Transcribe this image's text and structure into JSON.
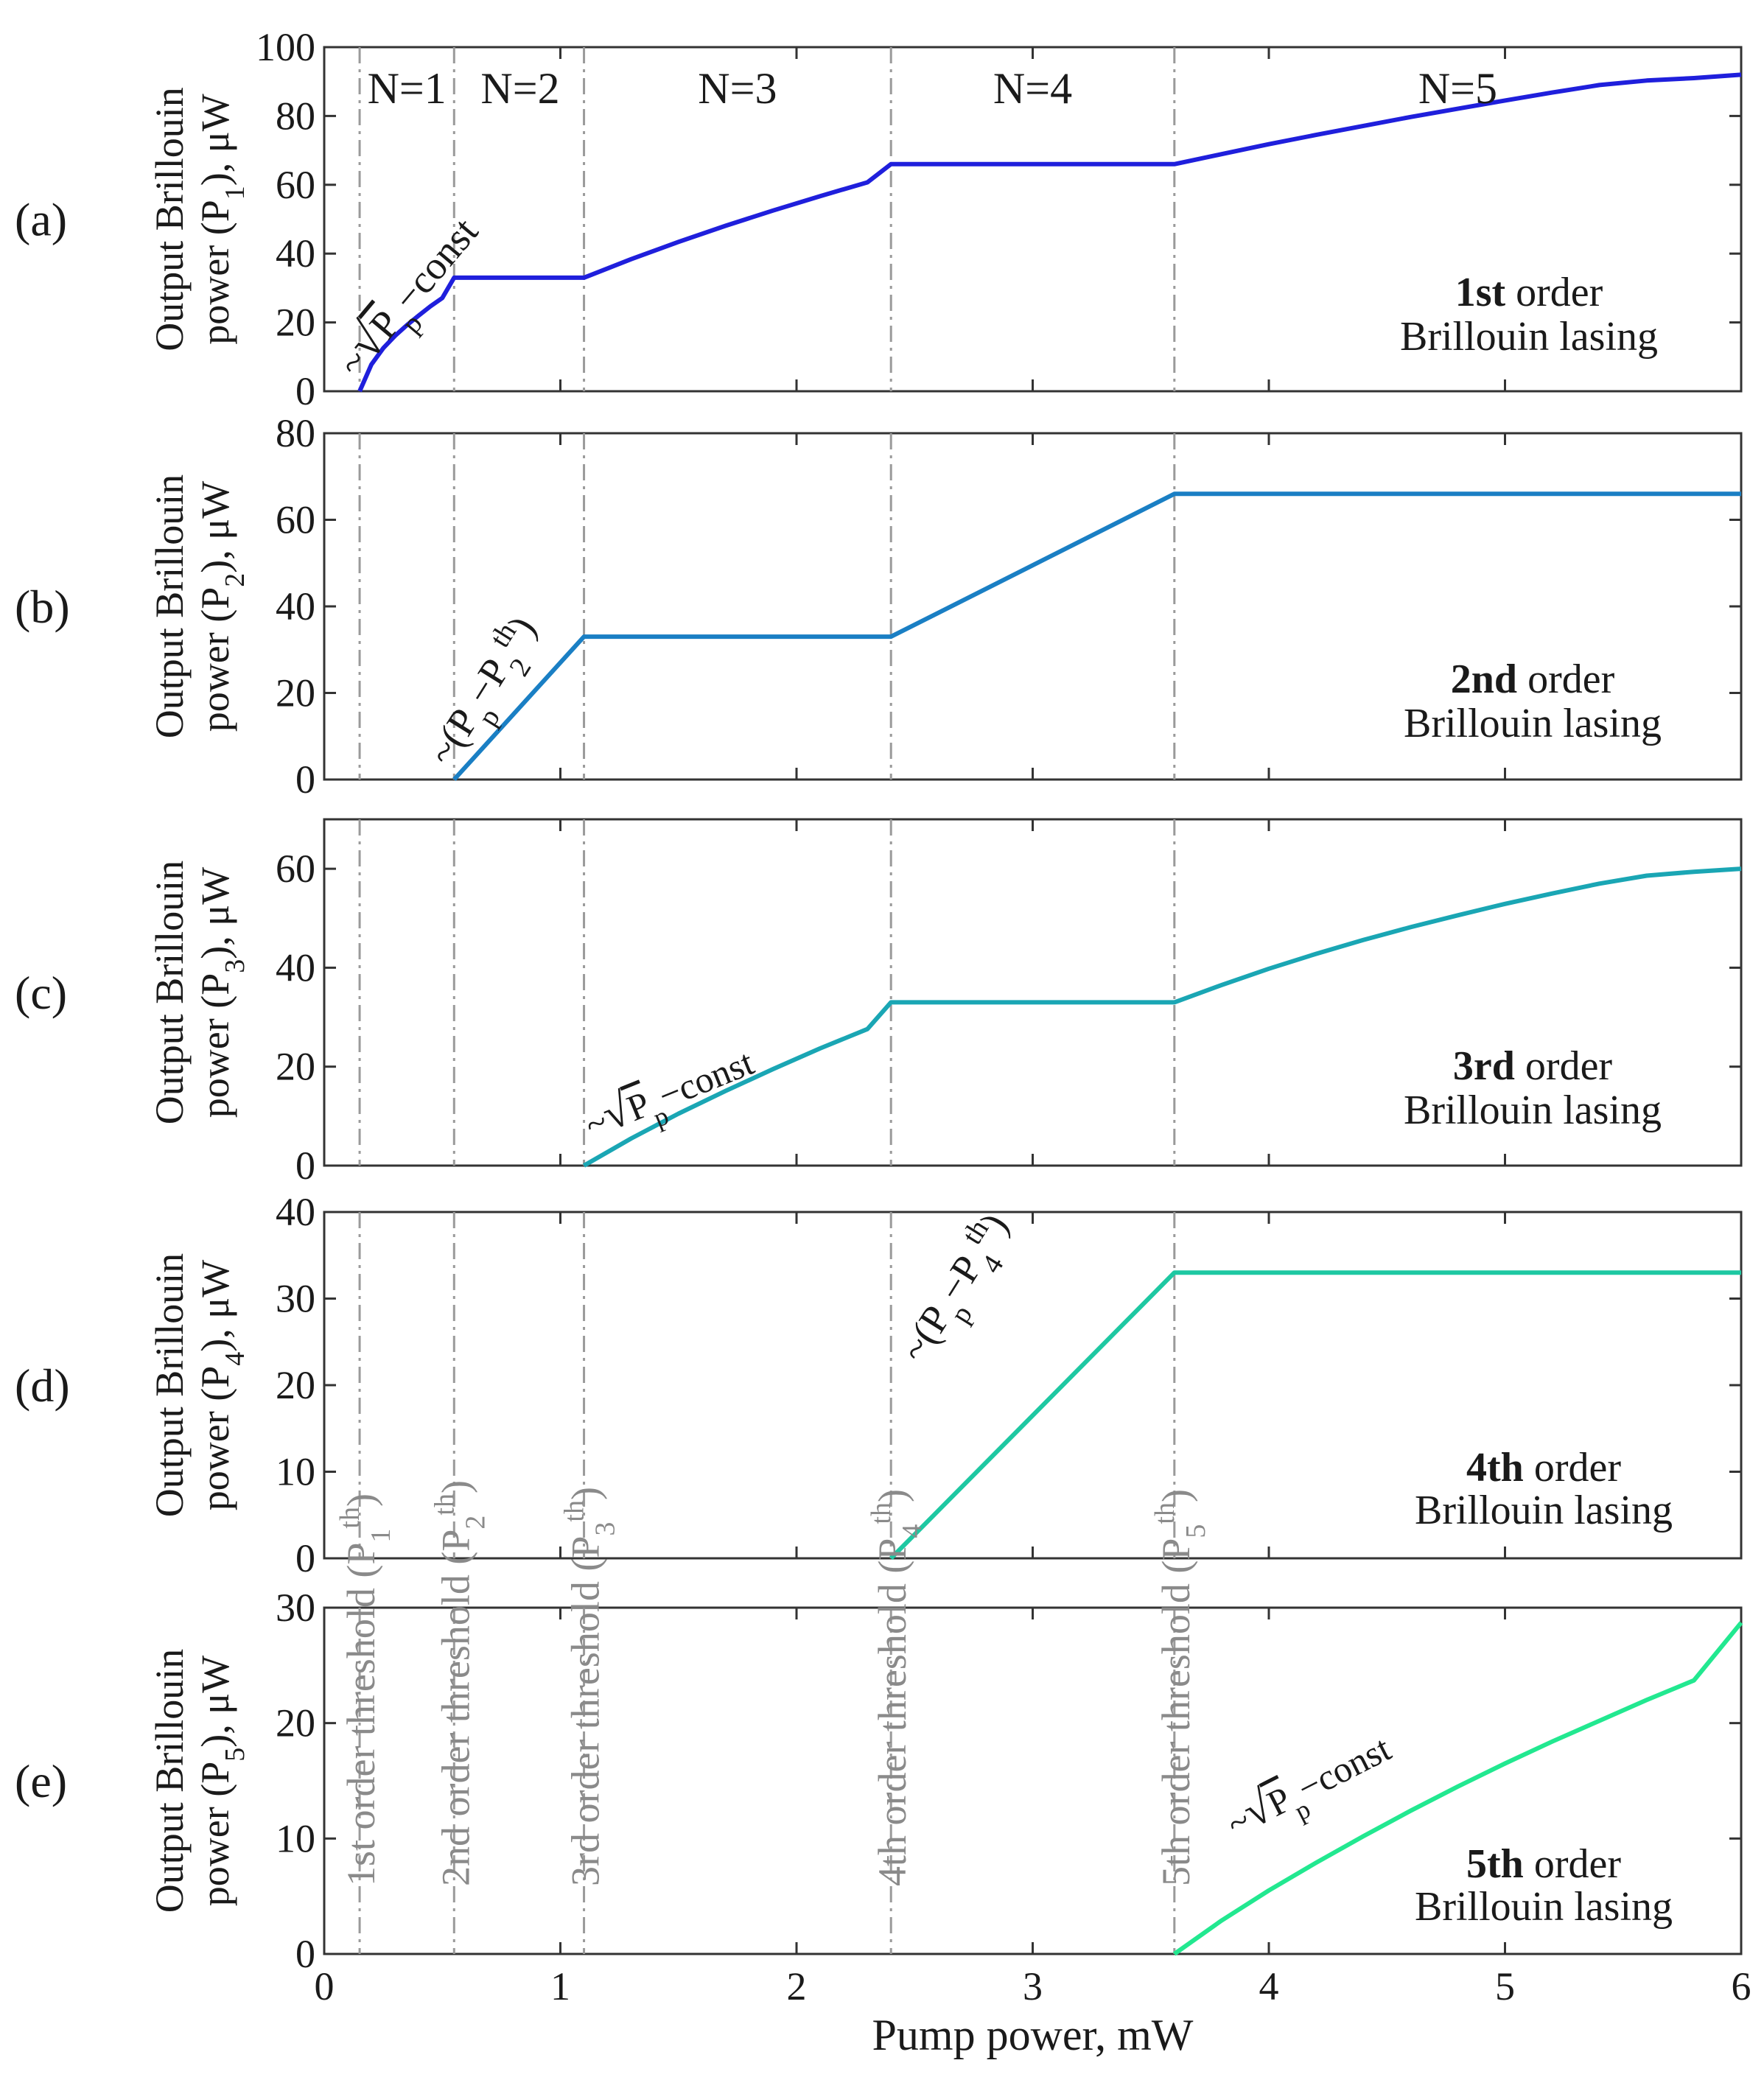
{
  "chart_data": {
    "type": "line",
    "xlabel": "Pump power, mW",
    "xlim": [
      0,
      6
    ],
    "xticks": [
      0,
      1,
      2,
      3,
      4,
      5,
      6
    ],
    "regions": [
      "N=1",
      "N=2",
      "N=3",
      "N=4",
      "N=5"
    ],
    "thresholds": {
      "x": [
        0.15,
        0.55,
        1.1,
        2.4,
        3.6
      ],
      "labels": [
        {
          "main": "1st order threshold (P",
          "sub": "1",
          "sup": "th",
          "close": ")"
        },
        {
          "main": "2nd order threshold (P",
          "sub": "2",
          "sup": "th",
          "close": ")"
        },
        {
          "main": "3rd order threshold (P",
          "sub": "3",
          "sup": "th",
          "close": ")"
        },
        {
          "main": "4th order threshold (P",
          "sub": "4",
          "sup": "th",
          "close": ")"
        },
        {
          "main": "5th order threshold (P",
          "sub": "5",
          "sup": "th",
          "close": ")"
        }
      ]
    },
    "panels": [
      {
        "tag": "(a)",
        "ylabel_line1": "Output Brillouin",
        "ylabel_line2_prefix": "power (P",
        "ylabel_sub": "1",
        "ylabel_line2_suffix": "), μW",
        "ylim": [
          0,
          100
        ],
        "yticks": [
          0,
          20,
          40,
          60,
          80,
          100
        ],
        "color": "#1f1fdc",
        "order_bold": "1st",
        "order_word": " order",
        "order_line2": "Brillouin lasing",
        "annotation": {
          "kind": "sqrt",
          "tilde": "~",
          "var": "P",
          "sub": "p",
          "rest": "−const"
        },
        "series": [
          [
            0.15,
            0
          ],
          [
            0.2,
            7.8
          ],
          [
            0.25,
            12.5
          ],
          [
            0.3,
            16.1
          ],
          [
            0.35,
            19.2
          ],
          [
            0.4,
            22.0
          ],
          [
            0.45,
            24.7
          ],
          [
            0.5,
            27.1
          ],
          [
            0.55,
            33
          ],
          [
            1.1,
            33
          ],
          [
            1.3,
            38.4
          ],
          [
            1.5,
            43.4
          ],
          [
            1.7,
            48.1
          ],
          [
            1.9,
            52.5
          ],
          [
            2.1,
            56.7
          ],
          [
            2.3,
            60.7
          ],
          [
            2.4,
            66
          ],
          [
            3.6,
            66
          ],
          [
            3.8,
            68.9
          ],
          [
            4.0,
            71.8
          ],
          [
            4.2,
            74.5
          ],
          [
            4.4,
            77.1
          ],
          [
            4.6,
            79.7
          ],
          [
            4.8,
            82.1
          ],
          [
            5.0,
            84.5
          ],
          [
            5.2,
            86.8
          ],
          [
            5.4,
            89.0
          ],
          [
            5.6,
            90.3
          ],
          [
            5.8,
            91.0
          ],
          [
            6.0,
            92
          ]
        ]
      },
      {
        "tag": "(b)",
        "ylabel_line1": "Output Brillouin",
        "ylabel_line2_prefix": "power (P",
        "ylabel_sub": "2",
        "ylabel_line2_suffix": "), μW",
        "ylim": [
          0,
          80
        ],
        "yticks": [
          0,
          20,
          40,
          60,
          80
        ],
        "color": "#1a7fc4",
        "order_bold": "2nd",
        "order_word": " order",
        "order_line2": "Brillouin lasing",
        "annotation": {
          "kind": "linear",
          "tilde": "~",
          "var": "P",
          "sub": "p",
          "mid": "−P",
          "sub2": "2",
          "sup2": "th",
          "close": ")"
        },
        "series": [
          [
            0.55,
            0
          ],
          [
            1.1,
            33
          ],
          [
            2.4,
            33
          ],
          [
            3.6,
            66
          ],
          [
            6.0,
            66
          ]
        ]
      },
      {
        "tag": "(c)",
        "ylabel_line1": "Output Brillouin",
        "ylabel_line2_prefix": "power (P",
        "ylabel_sub": "3",
        "ylabel_line2_suffix": "), μW",
        "ylim": [
          0,
          70
        ],
        "yticks": [
          0,
          20,
          40,
          60
        ],
        "color": "#1aa6b4",
        "order_bold": "3rd",
        "order_word": " order",
        "order_line2": "Brillouin lasing",
        "annotation": {
          "kind": "sqrt",
          "tilde": "~",
          "var": "P",
          "sub": "p",
          "rest": "−const"
        },
        "series": [
          [
            1.1,
            0
          ],
          [
            1.3,
            5.5
          ],
          [
            1.5,
            10.5
          ],
          [
            1.7,
            15.1
          ],
          [
            1.9,
            19.5
          ],
          [
            2.1,
            23.7
          ],
          [
            2.3,
            27.6
          ],
          [
            2.4,
            33
          ],
          [
            3.6,
            33
          ],
          [
            3.8,
            36.5
          ],
          [
            4.0,
            39.8
          ],
          [
            4.2,
            42.8
          ],
          [
            4.4,
            45.6
          ],
          [
            4.6,
            48.2
          ],
          [
            4.8,
            50.6
          ],
          [
            5.0,
            52.9
          ],
          [
            5.2,
            55.0
          ],
          [
            5.4,
            57.0
          ],
          [
            5.6,
            58.6
          ],
          [
            5.8,
            59.4
          ],
          [
            6.0,
            60
          ]
        ]
      },
      {
        "tag": "(d)",
        "ylabel_line1": "Output Brillouin",
        "ylabel_line2_prefix": "power (P",
        "ylabel_sub": "4",
        "ylabel_line2_suffix": "), μW",
        "ylim": [
          0,
          40
        ],
        "yticks": [
          0,
          10,
          20,
          30,
          40
        ],
        "color": "#1ec8a2",
        "order_bold": "4th",
        "order_word": " order",
        "order_line2": "Brillouin lasing",
        "annotation": {
          "kind": "linear",
          "tilde": "~",
          "var": "P",
          "sub": "p",
          "mid": "−P",
          "sub2": "4",
          "sup2": "th",
          "close": ")"
        },
        "series": [
          [
            2.4,
            0
          ],
          [
            3.6,
            33
          ],
          [
            6.0,
            33
          ]
        ]
      },
      {
        "tag": "(e)",
        "ylabel_line1": "Output Brillouin",
        "ylabel_line2_prefix": "power (P",
        "ylabel_sub": "5",
        "ylabel_line2_suffix": "), μW",
        "ylim": [
          0,
          30
        ],
        "yticks": [
          0,
          10,
          20,
          30
        ],
        "color": "#22e890",
        "order_bold": "5th",
        "order_word": " order",
        "order_line2": "Brillouin lasing",
        "annotation": {
          "kind": "sqrt",
          "tilde": "~",
          "var": "P",
          "sub": "p",
          "rest": "−const"
        },
        "series": [
          [
            3.6,
            0
          ],
          [
            3.8,
            2.9
          ],
          [
            4.0,
            5.5
          ],
          [
            4.2,
            7.9
          ],
          [
            4.4,
            10.2
          ],
          [
            4.6,
            12.4
          ],
          [
            4.8,
            14.5
          ],
          [
            5.0,
            16.5
          ],
          [
            5.2,
            18.4
          ],
          [
            5.4,
            20.2
          ],
          [
            5.6,
            22.0
          ],
          [
            5.8,
            23.7
          ],
          [
            6.0,
            28.7
          ]
        ]
      }
    ]
  }
}
